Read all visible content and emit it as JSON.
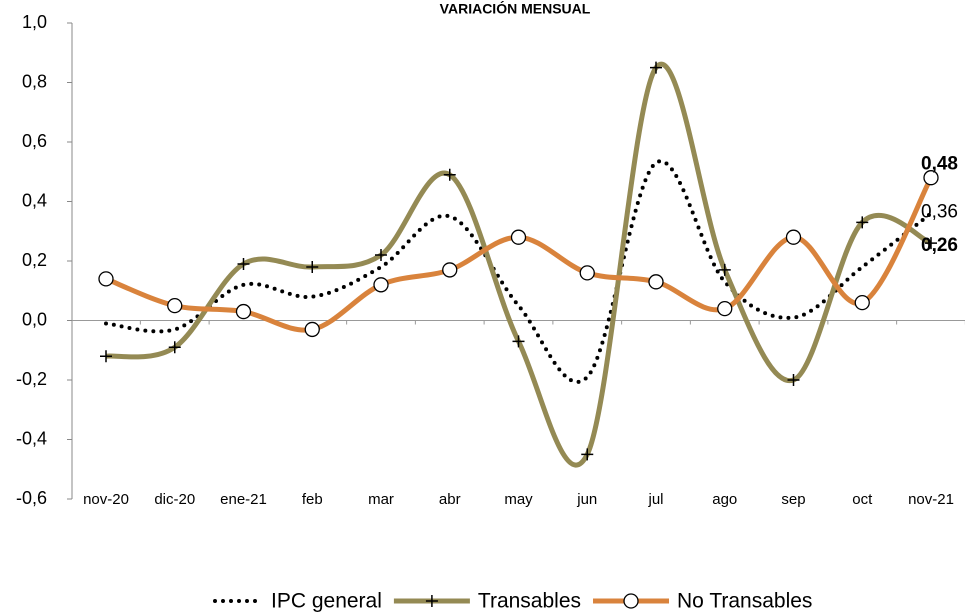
{
  "chart_data": {
    "type": "line",
    "title": "VARIACIÓN MENSUAL",
    "categories": [
      "nov-20",
      "dic-20",
      "ene-21",
      "feb",
      "mar",
      "abr",
      "may",
      "jun",
      "jul",
      "ago",
      "sep",
      "oct",
      "nov-21"
    ],
    "series": [
      {
        "name": "IPC general",
        "color": "#000000",
        "marker": "none",
        "style": "dotted",
        "values": [
          -0.01,
          -0.03,
          0.12,
          0.08,
          0.18,
          0.35,
          0.05,
          -0.19,
          0.53,
          0.13,
          0.01,
          0.18,
          0.36
        ],
        "value_labels": [
          null,
          null,
          null,
          null,
          null,
          null,
          null,
          null,
          null,
          null,
          null,
          null,
          "0,36"
        ]
      },
      {
        "name": "Transables",
        "color": "#948a54",
        "marker": "plus",
        "style": "solid",
        "values": [
          -0.12,
          -0.09,
          0.19,
          0.18,
          0.22,
          0.49,
          -0.07,
          -0.45,
          0.85,
          0.17,
          -0.2,
          0.33,
          0.26
        ],
        "value_labels": [
          null,
          null,
          null,
          null,
          null,
          null,
          null,
          null,
          null,
          null,
          null,
          null,
          "0,26"
        ]
      },
      {
        "name": "No Transables",
        "color": "#d9833c",
        "marker": "circle",
        "style": "solid",
        "values": [
          0.14,
          0.05,
          0.03,
          -0.03,
          0.12,
          0.17,
          0.28,
          0.16,
          0.13,
          0.04,
          0.28,
          0.06,
          0.48
        ],
        "value_labels": [
          null,
          null,
          null,
          null,
          null,
          null,
          null,
          null,
          null,
          null,
          null,
          null,
          "0,48"
        ]
      }
    ],
    "ylim": [
      -0.6,
      1.0
    ],
    "yticks": [
      {
        "value": -0.6,
        "label": "-0,6"
      },
      {
        "value": -0.4,
        "label": "-0,4"
      },
      {
        "value": -0.2,
        "label": "-0,2"
      },
      {
        "value": 0,
        "label": "0,0"
      },
      {
        "value": 0.2,
        "label": "0,2"
      },
      {
        "value": 0.4,
        "label": "0,4"
      },
      {
        "value": 0.6,
        "label": "0,6"
      },
      {
        "value": 0.8,
        "label": "0,8"
      },
      {
        "value": 1.0,
        "label": "1,0"
      }
    ],
    "legend": "bottom"
  }
}
